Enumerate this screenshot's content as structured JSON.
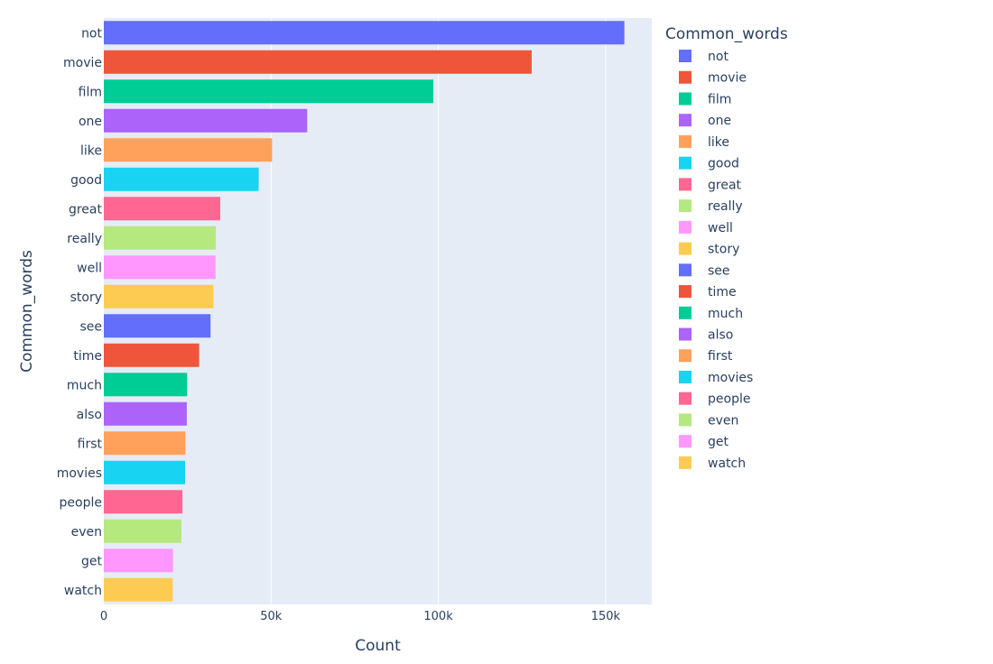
{
  "chart_data": {
    "type": "bar",
    "orientation": "horizontal",
    "categories": [
      "not",
      "movie",
      "film",
      "one",
      "like",
      "good",
      "great",
      "really",
      "well",
      "story",
      "see",
      "time",
      "much",
      "also",
      "first",
      "movies",
      "people",
      "even",
      "get",
      "watch"
    ],
    "values": [
      155600,
      127900,
      98500,
      60800,
      50300,
      46300,
      34800,
      33500,
      33400,
      32800,
      31900,
      28500,
      24900,
      24800,
      24400,
      24300,
      23500,
      23200,
      20700,
      20600
    ],
    "colors": [
      "#636efa",
      "#EF553B",
      "#00cc96",
      "#ab63fa",
      "#FFA15A",
      "#19d3f3",
      "#FF6692",
      "#B6E880",
      "#FF97FF",
      "#FECB52",
      "#636efa",
      "#EF553B",
      "#00cc96",
      "#ab63fa",
      "#FFA15A",
      "#19d3f3",
      "#FF6692",
      "#B6E880",
      "#FF97FF",
      "#FECB52"
    ],
    "xlabel": "Count",
    "ylabel": "Common_words",
    "xlim": [
      0,
      163800
    ],
    "xticks": [
      0,
      50000,
      100000,
      150000
    ],
    "xtick_labels": [
      "0",
      "50k",
      "100k",
      "150k"
    ],
    "grid": true,
    "plot_background": "#e5ecf6",
    "legend": {
      "title": "Common_words",
      "placement": "right",
      "entries": [
        "not",
        "movie",
        "film",
        "one",
        "like",
        "good",
        "great",
        "really",
        "well",
        "story",
        "see",
        "time",
        "much",
        "also",
        "first",
        "movies",
        "people",
        "even",
        "get",
        "watch"
      ]
    }
  }
}
